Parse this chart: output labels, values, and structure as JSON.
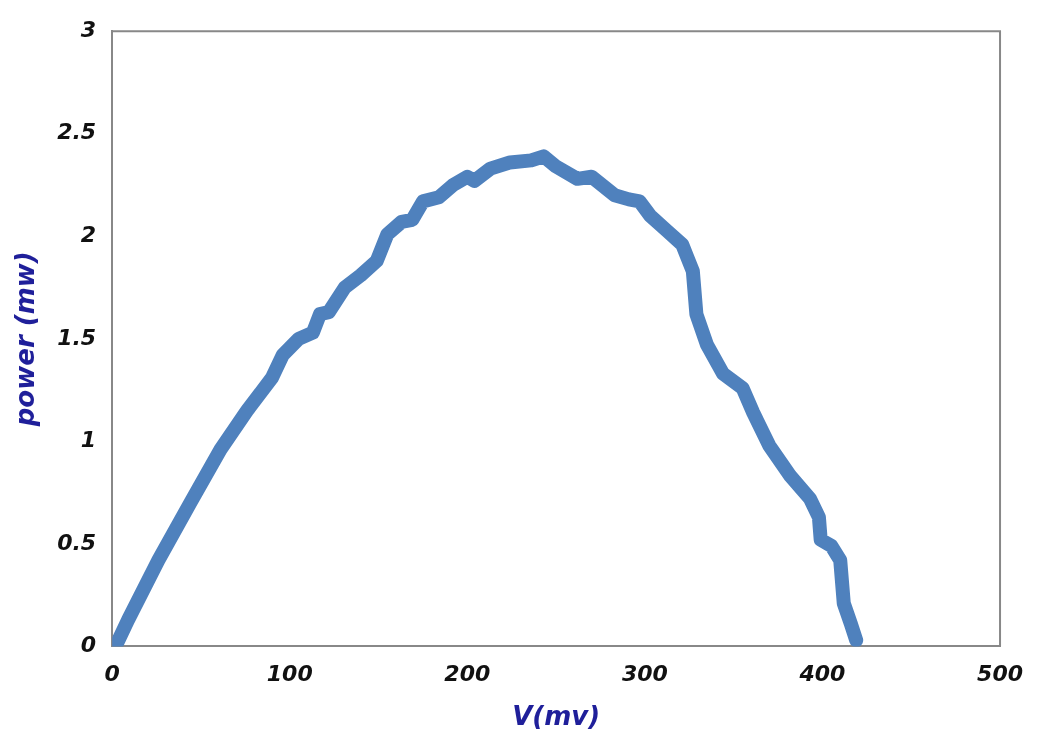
{
  "chart_data": {
    "type": "line",
    "xlabel": "V(mv)",
    "ylabel": "power (mw)",
    "xlim": [
      0,
      500
    ],
    "ylim": [
      0,
      3
    ],
    "xticks": [
      0,
      100,
      200,
      300,
      400,
      500
    ],
    "yticks": [
      0,
      0.5,
      1,
      1.5,
      2,
      2.5,
      3
    ],
    "grid": false,
    "legend": false,
    "marker": "none",
    "line_style": "solid",
    "series": [
      {
        "color": "#4f81bd",
        "x": [
          3,
          9,
          26,
          44,
          61,
          76,
          90,
          96,
          105,
          113,
          117,
          122,
          131,
          140,
          149,
          155,
          163,
          169,
          175,
          184,
          192,
          200,
          204,
          213,
          224,
          236,
          243,
          250,
          262,
          270,
          283,
          291,
          297,
          303,
          312,
          321,
          327,
          329,
          335,
          344,
          355,
          361,
          370,
          382,
          393,
          398,
          399,
          405,
          410,
          412,
          416,
          419
        ],
        "values": [
          0.02,
          0.13,
          0.42,
          0.7,
          0.96,
          1.15,
          1.31,
          1.42,
          1.5,
          1.53,
          1.62,
          1.63,
          1.75,
          1.81,
          1.88,
          2.01,
          2.07,
          2.08,
          2.17,
          2.19,
          2.25,
          2.29,
          2.27,
          2.33,
          2.36,
          2.37,
          2.39,
          2.34,
          2.28,
          2.29,
          2.2,
          2.18,
          2.17,
          2.1,
          2.03,
          1.96,
          1.83,
          1.62,
          1.47,
          1.33,
          1.26,
          1.14,
          0.98,
          0.83,
          0.72,
          0.63,
          0.52,
          0.49,
          0.42,
          0.21,
          0.11,
          0.03
        ]
      }
    ]
  }
}
